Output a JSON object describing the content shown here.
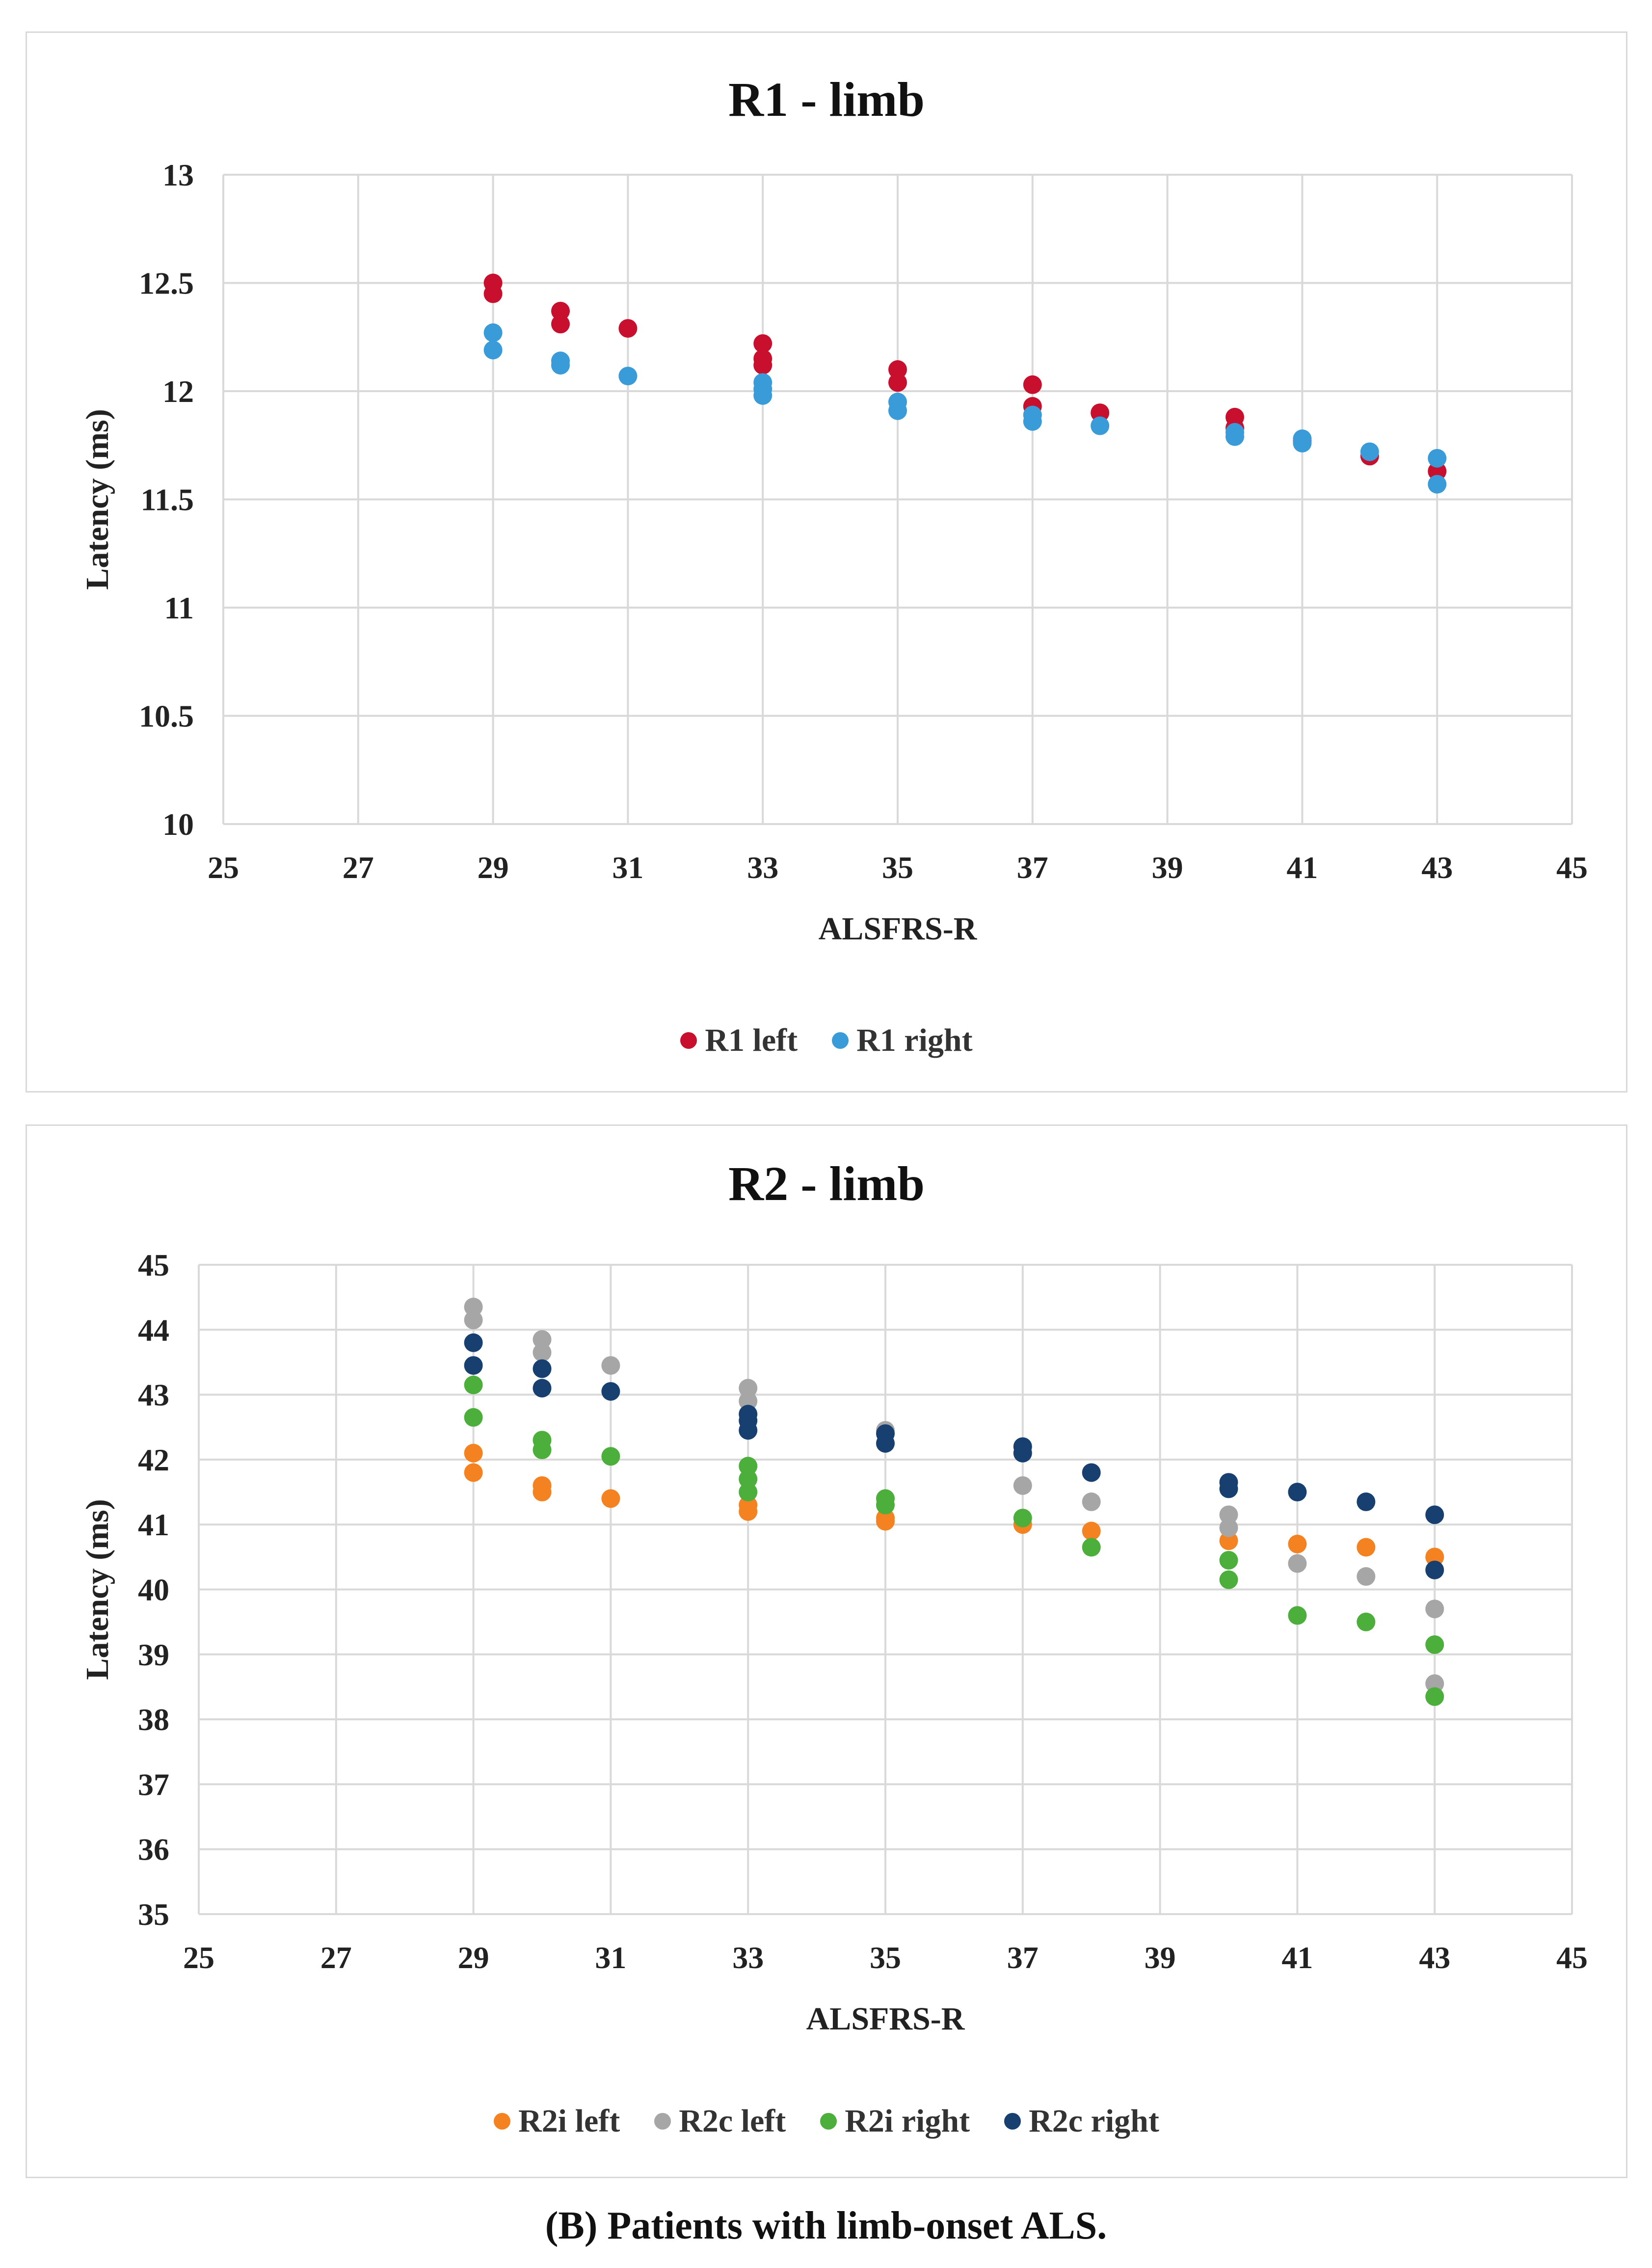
{
  "caption": {
    "open_paren": "(",
    "letter": "B",
    "rest": ") Patients with limb-onset ALS."
  },
  "chart_data": [
    {
      "type": "scatter",
      "title": "R1 - limb",
      "xlabel": "ALSFRS-R",
      "ylabel": "Latency (ms)",
      "xlim": [
        25,
        45
      ],
      "ylim": [
        10,
        13
      ],
      "xticks": [
        25,
        27,
        29,
        31,
        33,
        35,
        37,
        39,
        41,
        43,
        45
      ],
      "yticks": [
        10,
        10.5,
        11,
        11.5,
        12,
        12.5,
        13
      ],
      "ytick_labels": [
        "10",
        "10.5",
        "11",
        "11.5",
        "12",
        "12.5",
        "13"
      ],
      "grid": true,
      "legend_position": "bottom",
      "series": [
        {
          "name": "R1 left",
          "color": "#c8102e",
          "points": [
            [
              29,
              12.5
            ],
            [
              29,
              12.45
            ],
            [
              30,
              12.37
            ],
            [
              30,
              12.31
            ],
            [
              31,
              12.29
            ],
            [
              33,
              12.22
            ],
            [
              33,
              12.15
            ],
            [
              33,
              12.12
            ],
            [
              35,
              12.1
            ],
            [
              35,
              12.04
            ],
            [
              37,
              12.03
            ],
            [
              37,
              11.93
            ],
            [
              38,
              11.9
            ],
            [
              40,
              11.88
            ],
            [
              40,
              11.83
            ],
            [
              41,
              11.77
            ],
            [
              42,
              11.7
            ],
            [
              43,
              11.63
            ]
          ]
        },
        {
          "name": "R1 right",
          "color": "#3a9bd9",
          "points": [
            [
              29,
              12.27
            ],
            [
              29,
              12.19
            ],
            [
              30,
              12.14
            ],
            [
              30,
              12.12
            ],
            [
              31,
              12.07
            ],
            [
              33,
              12.04
            ],
            [
              33,
              12.01
            ],
            [
              33,
              11.98
            ],
            [
              35,
              11.95
            ],
            [
              35,
              11.91
            ],
            [
              37,
              11.89
            ],
            [
              37,
              11.86
            ],
            [
              38,
              11.84
            ],
            [
              40,
              11.81
            ],
            [
              40,
              11.79
            ],
            [
              41,
              11.78
            ],
            [
              41,
              11.76
            ],
            [
              42,
              11.72
            ],
            [
              43,
              11.69
            ],
            [
              43,
              11.57
            ]
          ]
        }
      ]
    },
    {
      "type": "scatter",
      "title": "R2 - limb",
      "xlabel": "ALSFRS-R",
      "ylabel": "Latency (ms)",
      "xlim": [
        25,
        45
      ],
      "ylim": [
        35,
        45
      ],
      "xticks": [
        25,
        27,
        29,
        31,
        33,
        35,
        37,
        39,
        41,
        43,
        45
      ],
      "yticks": [
        35,
        36,
        37,
        38,
        39,
        40,
        41,
        42,
        43,
        44,
        45
      ],
      "ytick_labels": [
        "35",
        "36",
        "37",
        "38",
        "39",
        "40",
        "41",
        "42",
        "43",
        "44",
        "45"
      ],
      "grid": true,
      "legend_position": "bottom",
      "series": [
        {
          "name": "R2i left",
          "color": "#f58220",
          "points": [
            [
              29,
              42.1
            ],
            [
              29,
              41.8
            ],
            [
              30,
              41.6
            ],
            [
              30,
              41.5
            ],
            [
              31,
              41.4
            ],
            [
              33,
              41.3
            ],
            [
              33,
              41.2
            ],
            [
              35,
              41.1
            ],
            [
              35,
              41.05
            ],
            [
              37,
              41.0
            ],
            [
              38,
              40.9
            ],
            [
              40,
              40.75
            ],
            [
              41,
              40.7
            ],
            [
              42,
              40.65
            ],
            [
              43,
              40.5
            ]
          ]
        },
        {
          "name": "R2c left",
          "color": "#a6a6a6",
          "points": [
            [
              29,
              44.35
            ],
            [
              29,
              44.15
            ],
            [
              30,
              43.85
            ],
            [
              30,
              43.65
            ],
            [
              31,
              43.45
            ],
            [
              33,
              43.1
            ],
            [
              33,
              42.9
            ],
            [
              35,
              42.45
            ],
            [
              37,
              41.6
            ],
            [
              38,
              41.35
            ],
            [
              40,
              41.15
            ],
            [
              40,
              40.95
            ],
            [
              41,
              40.4
            ],
            [
              42,
              40.2
            ],
            [
              43,
              39.7
            ],
            [
              43,
              38.55
            ]
          ]
        },
        {
          "name": "R2i right",
          "color": "#4cae3b",
          "points": [
            [
              29,
              43.15
            ],
            [
              29,
              42.65
            ],
            [
              30,
              42.3
            ],
            [
              30,
              42.15
            ],
            [
              31,
              42.05
            ],
            [
              33,
              41.9
            ],
            [
              33,
              41.7
            ],
            [
              33,
              41.5
            ],
            [
              35,
              41.4
            ],
            [
              35,
              41.3
            ],
            [
              37,
              41.1
            ],
            [
              38,
              40.65
            ],
            [
              40,
              40.45
            ],
            [
              40,
              40.15
            ],
            [
              41,
              39.6
            ],
            [
              42,
              39.5
            ],
            [
              43,
              39.15
            ],
            [
              43,
              38.35
            ]
          ]
        },
        {
          "name": "R2c right",
          "color": "#173f6f",
          "points": [
            [
              29,
              43.8
            ],
            [
              29,
              43.45
            ],
            [
              30,
              43.4
            ],
            [
              30,
              43.1
            ],
            [
              31,
              43.05
            ],
            [
              33,
              42.7
            ],
            [
              33,
              42.6
            ],
            [
              33,
              42.45
            ],
            [
              35,
              42.4
            ],
            [
              35,
              42.25
            ],
            [
              37,
              42.2
            ],
            [
              37,
              42.1
            ],
            [
              38,
              41.8
            ],
            [
              40,
              41.65
            ],
            [
              40,
              41.55
            ],
            [
              41,
              41.5
            ],
            [
              42,
              41.35
            ],
            [
              43,
              41.15
            ],
            [
              43,
              40.3
            ]
          ]
        }
      ]
    }
  ]
}
